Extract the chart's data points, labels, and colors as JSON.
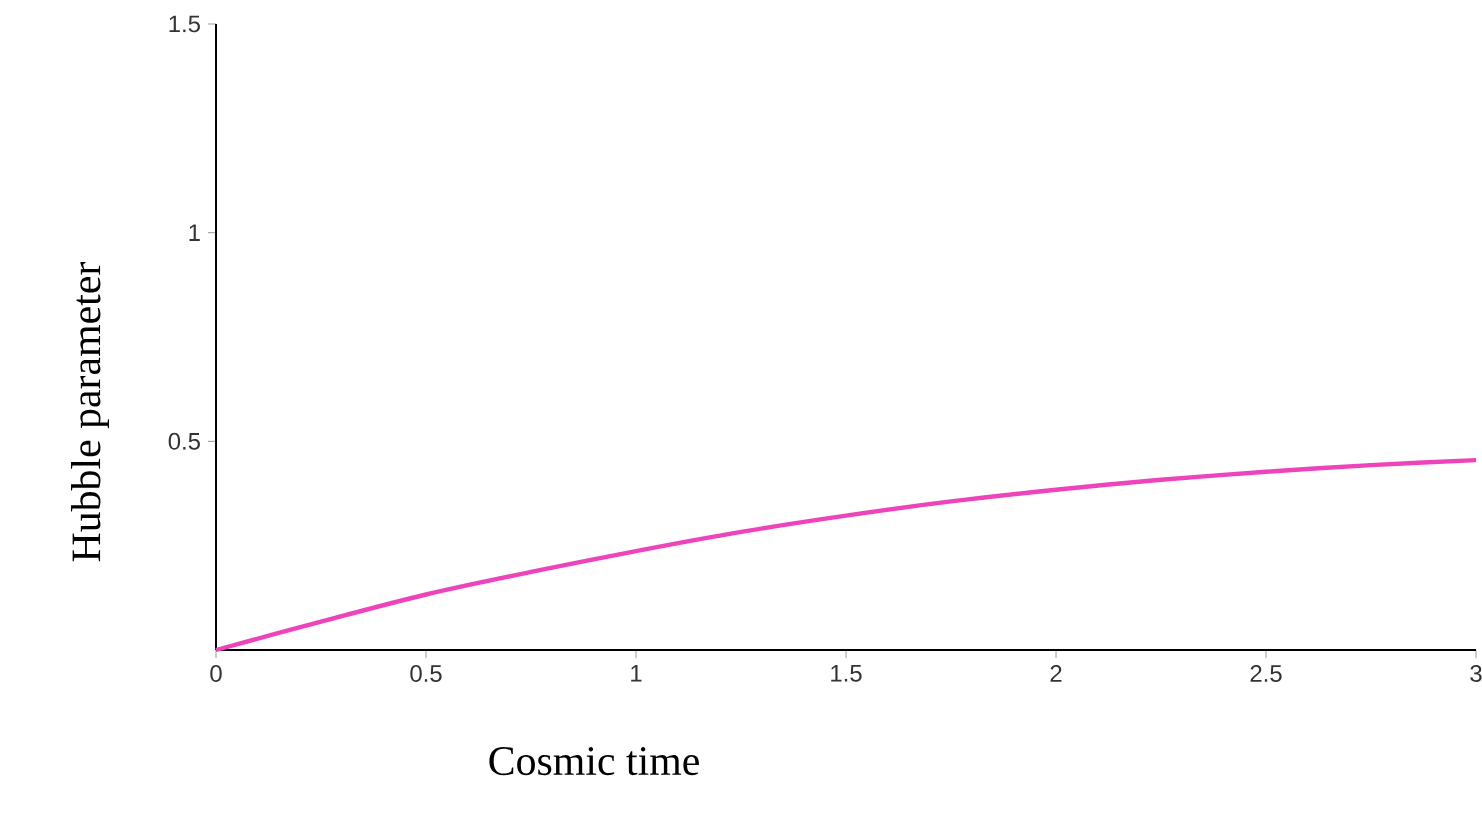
{
  "chart_data": {
    "type": "line",
    "xlabel": "Cosmic time",
    "ylabel": "Hubble parameter",
    "x": [
      0,
      0.25,
      0.5,
      0.75,
      1,
      1.25,
      1.5,
      1.75,
      2,
      2.25,
      2.5,
      2.75,
      3
    ],
    "series": [
      {
        "color": "#ee44bb",
        "values": [
          0,
          0.068,
          0.133,
          0.187,
          0.237,
          0.283,
          0.322,
          0.356,
          0.384,
          0.408,
          0.427,
          0.443,
          0.455
        ]
      }
    ],
    "xlim": [
      0,
      3
    ],
    "ylim": [
      0,
      1.5
    ],
    "xticks": [
      0,
      0.5,
      1,
      1.5,
      2,
      2.5,
      3
    ],
    "yticks": [
      0.5,
      1,
      1.5
    ],
    "grid": false,
    "marker": "none",
    "line_style": "solid"
  }
}
